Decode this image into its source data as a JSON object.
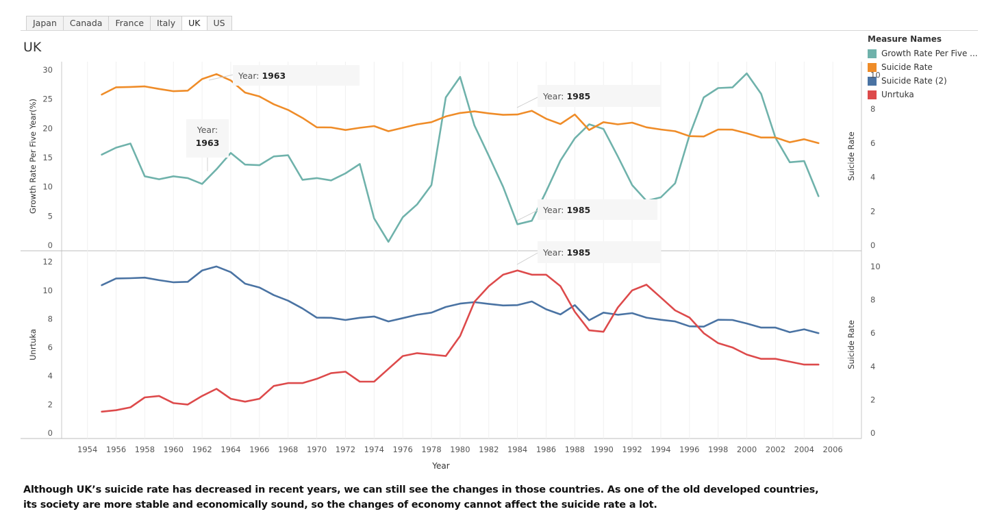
{
  "tabs": [
    "Japan",
    "Canada",
    "France",
    "Italy",
    "UK",
    "US"
  ],
  "active_tab": "UK",
  "page_title": "UK",
  "legend": {
    "title": "Measure Names",
    "items": [
      {
        "label": "Growth Rate Per Five ...",
        "color": "#6fb2ab"
      },
      {
        "label": "Suicide Rate",
        "color": "#ef8c28"
      },
      {
        "label": "Suicide Rate (2)",
        "color": "#4a73a3"
      },
      {
        "label": "Unrtuka",
        "color": "#dd4a4b"
      }
    ]
  },
  "caption": "Although UK’s suicide rate has decreased in recent years, we can still see the changes in those countries. As one of the old developed countries, its society are more stable and economically sound, so the changes of economy cannot affect the suicide rate a lot.",
  "chart_data": [
    {
      "type": "line",
      "xlabel": "Year",
      "ylabel": "Growth Rate Per Five Year(%)",
      "y2label": "Suicide Rate",
      "x_ticks": [
        1954,
        1956,
        1958,
        1960,
        1962,
        1964,
        1966,
        1968,
        1970,
        1972,
        1974,
        1976,
        1978,
        1980,
        1982,
        1984,
        1986,
        1988,
        1990,
        1992,
        1994,
        1996,
        1998,
        2000,
        2002,
        2004,
        2006
      ],
      "xlim": [
        1952.2,
        2008.0
      ],
      "ylim": [
        0,
        30
      ],
      "y_ticks": [
        0,
        5,
        10,
        15,
        20,
        25,
        30
      ],
      "y2lim": [
        0,
        10.3
      ],
      "y2_ticks": [
        0,
        2,
        4,
        6,
        8,
        10
      ],
      "grid": true,
      "series": [
        {
          "name": "Growth Rate Per Five ...",
          "axis": "left",
          "color": "#6fb2ab",
          "x": [
            1955,
            1956,
            1957,
            1958,
            1959,
            1960,
            1961,
            1962,
            1963,
            1964,
            1965,
            1966,
            1967,
            1968,
            1969,
            1970,
            1971,
            1972,
            1973,
            1974,
            1975,
            1976,
            1977,
            1978,
            1979,
            1980,
            1981,
            1982,
            1983,
            1984,
            1985,
            1986,
            1987,
            1988,
            1989,
            1990,
            1991,
            1992,
            1993,
            1994,
            1995,
            1996,
            1997,
            1998,
            1999,
            2000,
            2001,
            2002,
            2003,
            2004,
            2005
          ],
          "y": [
            15.5,
            16.7,
            17.4,
            11.8,
            11.3,
            11.8,
            11.5,
            10.5,
            13.0,
            15.8,
            13.8,
            13.7,
            15.2,
            15.4,
            11.2,
            11.5,
            11.1,
            12.3,
            13.9,
            4.6,
            0.6,
            4.8,
            7.0,
            10.3,
            25.3,
            28.8,
            20.5,
            15.3,
            10.0,
            3.6,
            4.2,
            9.2,
            14.5,
            18.3,
            20.7,
            19.9,
            15.2,
            10.3,
            7.6,
            8.2,
            10.6,
            18.8,
            25.3,
            26.9,
            27.0,
            29.4,
            25.9,
            18.4,
            14.2,
            14.4,
            8.4
          ]
        },
        {
          "name": "Suicide Rate",
          "axis": "right",
          "color": "#ef8c28",
          "x": [
            1955,
            1956,
            1957,
            1958,
            1959,
            1960,
            1961,
            1962,
            1963,
            1964,
            1965,
            1966,
            1967,
            1968,
            1969,
            1970,
            1971,
            1972,
            1973,
            1974,
            1975,
            1976,
            1977,
            1978,
            1979,
            1980,
            1981,
            1982,
            1983,
            1984,
            1985,
            1986,
            1987,
            1988,
            1989,
            1990,
            1991,
            1992,
            1993,
            1994,
            1995,
            1996,
            1997,
            1998,
            1999,
            2000,
            2001,
            2002,
            2003,
            2004,
            2005
          ],
          "y": [
            8.85,
            9.28,
            9.3,
            9.33,
            9.18,
            9.05,
            9.08,
            9.76,
            10.05,
            9.68,
            8.97,
            8.74,
            8.28,
            7.95,
            7.48,
            6.93,
            6.92,
            6.77,
            6.9,
            7.0,
            6.7,
            6.9,
            7.1,
            7.23,
            7.57,
            7.77,
            7.86,
            7.75,
            7.66,
            7.68,
            7.9,
            7.43,
            7.12,
            7.68,
            6.77,
            7.23,
            7.1,
            7.2,
            6.93,
            6.8,
            6.7,
            6.41,
            6.39,
            6.8,
            6.79,
            6.58,
            6.33,
            6.33,
            6.05,
            6.23,
            6.0
          ]
        }
      ]
    },
    {
      "type": "line",
      "xlabel": "Year",
      "ylabel": "Unrtuka",
      "y2label": "Suicide Rate",
      "x_ticks": [
        1954,
        1956,
        1958,
        1960,
        1962,
        1964,
        1966,
        1968,
        1970,
        1972,
        1974,
        1976,
        1978,
        1980,
        1982,
        1984,
        1986,
        1988,
        1990,
        1992,
        1994,
        1996,
        1998,
        2000,
        2002,
        2004,
        2006
      ],
      "xlim": [
        1952.2,
        2008.0
      ],
      "ylim": [
        0,
        12.2
      ],
      "y_ticks": [
        0,
        2,
        4,
        6,
        8,
        10,
        12
      ],
      "y2lim": [
        0,
        10.45
      ],
      "y2_ticks": [
        0,
        2,
        4,
        6,
        8,
        10
      ],
      "grid": true,
      "series": [
        {
          "name": "Suicide Rate (2)",
          "axis": "right",
          "color": "#4a73a3",
          "x": [
            1955,
            1956,
            1957,
            1958,
            1959,
            1960,
            1961,
            1962,
            1963,
            1964,
            1965,
            1966,
            1967,
            1968,
            1969,
            1970,
            1971,
            1972,
            1973,
            1974,
            1975,
            1976,
            1977,
            1978,
            1979,
            1980,
            1981,
            1982,
            1983,
            1984,
            1985,
            1986,
            1987,
            1988,
            1989,
            1990,
            1991,
            1992,
            1993,
            1994,
            1995,
            1996,
            1997,
            1998,
            1999,
            2000,
            2001,
            2002,
            2003,
            2004,
            2005
          ],
          "y": [
            8.88,
            9.28,
            9.3,
            9.33,
            9.18,
            9.05,
            9.08,
            9.76,
            10.0,
            9.66,
            8.97,
            8.74,
            8.28,
            7.95,
            7.48,
            6.93,
            6.92,
            6.79,
            6.92,
            7.0,
            6.7,
            6.9,
            7.1,
            7.23,
            7.57,
            7.77,
            7.86,
            7.75,
            7.66,
            7.68,
            7.9,
            7.43,
            7.12,
            7.68,
            6.77,
            7.23,
            7.1,
            7.2,
            6.93,
            6.8,
            6.7,
            6.41,
            6.39,
            6.8,
            6.79,
            6.58,
            6.33,
            6.33,
            6.05,
            6.23,
            6.0
          ]
        },
        {
          "name": "Unrtuka",
          "axis": "left",
          "color": "#dd4a4b",
          "x": [
            1955,
            1956,
            1957,
            1958,
            1959,
            1960,
            1961,
            1962,
            1963,
            1964,
            1965,
            1966,
            1967,
            1968,
            1969,
            1970,
            1971,
            1972,
            1973,
            1974,
            1975,
            1976,
            1977,
            1978,
            1979,
            1980,
            1981,
            1982,
            1983,
            1984,
            1985,
            1986,
            1987,
            1988,
            1989,
            1990,
            1991,
            1992,
            1993,
            1994,
            1995,
            1996,
            1997,
            1998,
            1999,
            2000,
            2001,
            2002,
            2003,
            2004,
            2005
          ],
          "y": [
            1.5,
            1.6,
            1.8,
            2.5,
            2.6,
            2.1,
            2.0,
            2.6,
            3.1,
            2.4,
            2.2,
            2.4,
            3.3,
            3.5,
            3.5,
            3.8,
            4.2,
            4.3,
            3.6,
            3.6,
            4.5,
            5.4,
            5.6,
            5.5,
            5.4,
            6.8,
            9.2,
            10.3,
            11.1,
            11.4,
            11.1,
            11.1,
            10.3,
            8.5,
            7.2,
            7.1,
            8.8,
            10.0,
            10.4,
            9.5,
            8.6,
            8.1,
            7.0,
            6.3,
            6.0,
            5.5,
            5.2,
            5.2,
            5.0,
            4.8,
            4.8
          ]
        }
      ]
    }
  ],
  "tooltips": [
    {
      "panel": 0,
      "prefix": "Year: ",
      "value": "1963"
    },
    {
      "panel": 0,
      "prefix": "Year: ",
      "value": "1963"
    },
    {
      "panel": 0,
      "prefix": "Year: ",
      "value": "1985"
    },
    {
      "panel": 0,
      "prefix": "Year: ",
      "value": "1985"
    },
    {
      "panel": 1,
      "prefix": "Year: ",
      "value": "1985"
    }
  ]
}
